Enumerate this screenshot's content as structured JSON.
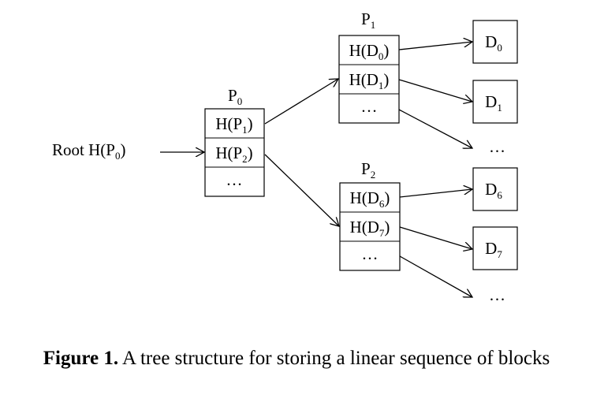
{
  "nodes": {
    "root": {
      "text": "Root H(P",
      "sub": "0",
      "tail": ")"
    },
    "p0": {
      "label": "P",
      "label_sub": "0",
      "cells": [
        {
          "text": "H(P",
          "sub": "1",
          "tail": ")"
        },
        {
          "text": "H(P",
          "sub": "2",
          "tail": ")"
        },
        {
          "text": "…",
          "sub": "",
          "tail": ""
        }
      ]
    },
    "p1": {
      "label": "P",
      "label_sub": "1",
      "cells": [
        {
          "text": "H(D",
          "sub": "0",
          "tail": ")"
        },
        {
          "text": "H(D",
          "sub": "1",
          "tail": ")"
        },
        {
          "text": "…",
          "sub": "",
          "tail": ""
        }
      ]
    },
    "p2": {
      "label": "P",
      "label_sub": "2",
      "cells": [
        {
          "text": "H(D",
          "sub": "6",
          "tail": ")"
        },
        {
          "text": "H(D",
          "sub": "7",
          "tail": ")"
        },
        {
          "text": "…",
          "sub": "",
          "tail": ""
        }
      ]
    },
    "data_blocks": [
      {
        "text": "D",
        "sub": "0"
      },
      {
        "text": "D",
        "sub": "1"
      },
      {
        "text": "D",
        "sub": "6"
      },
      {
        "text": "D",
        "sub": "7"
      }
    ],
    "ellipsis_1": "…",
    "ellipsis_2": "…"
  },
  "caption": {
    "bold": "Figure 1.",
    "text": " A tree structure for storing a linear sequence of blocks"
  }
}
